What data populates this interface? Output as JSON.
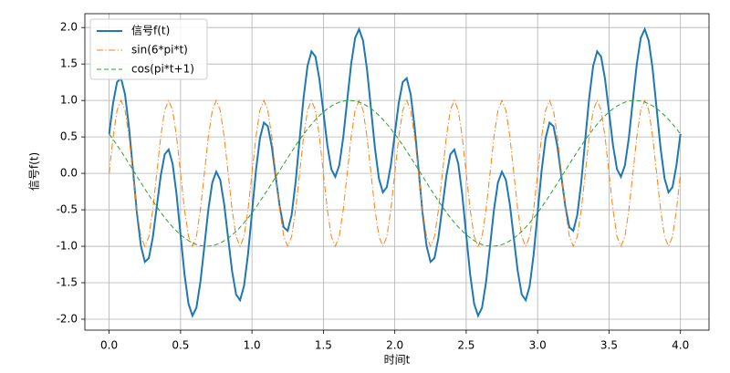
{
  "chart_data": {
    "type": "line",
    "xlabel": "时间t",
    "ylabel": "信号f(t)",
    "xlim": [
      -0.17,
      4.2
    ],
    "ylim": [
      -2.15,
      2.19
    ],
    "xticks": [
      {
        "value": 0,
        "label": "0.0"
      },
      {
        "value": 0.5,
        "label": "0.5"
      },
      {
        "value": 1,
        "label": "1.0"
      },
      {
        "value": 1.5,
        "label": "1.5"
      },
      {
        "value": 2,
        "label": "2.0"
      },
      {
        "value": 2.5,
        "label": "2.5"
      },
      {
        "value": 3,
        "label": "3.0"
      },
      {
        "value": 3.5,
        "label": "3.5"
      },
      {
        "value": 4,
        "label": "4.0"
      }
    ],
    "yticks": [
      {
        "value": -2,
        "label": "-2.0"
      },
      {
        "value": -1.5,
        "label": "-1.5"
      },
      {
        "value": -1,
        "label": "-1.0"
      },
      {
        "value": -0.5,
        "label": "-0.5"
      },
      {
        "value": 0,
        "label": "0.0"
      },
      {
        "value": 0.5,
        "label": "0.5"
      },
      {
        "value": 1,
        "label": "1.0"
      },
      {
        "value": 1.5,
        "label": "1.5"
      },
      {
        "value": 2,
        "label": "2.0"
      }
    ],
    "grid": true,
    "legend": "upper-left",
    "x": [
      0,
      0.0278,
      0.0556,
      0.0833,
      0.1111,
      0.1389,
      0.1667,
      0.1944,
      0.2222,
      0.25,
      0.2778,
      0.3056,
      0.3333,
      0.3611,
      0.3889,
      0.4167,
      0.4444,
      0.4722,
      0.5,
      0.5278,
      0.5556,
      0.5833,
      0.6111,
      0.6389,
      0.6667,
      0.6944,
      0.7222,
      0.75,
      0.7778,
      0.8056,
      0.8333,
      0.8611,
      0.8889,
      0.9167,
      0.9444,
      0.9722,
      1,
      1.0278,
      1.0556,
      1.0833,
      1.1111,
      1.1389,
      1.1667,
      1.1944,
      1.2222,
      1.25,
      1.2778,
      1.3056,
      1.3333,
      1.3611,
      1.3889,
      1.4167,
      1.4444,
      1.4722,
      1.5,
      1.5278,
      1.5556,
      1.5833,
      1.6111,
      1.6389,
      1.6667,
      1.6944,
      1.7222,
      1.75,
      1.7778,
      1.8056,
      1.8333,
      1.8611,
      1.8889,
      1.9167,
      1.9444,
      1.9722,
      2,
      2.0278,
      2.0556,
      2.0833,
      2.1111,
      2.1389,
      2.1667,
      2.1944,
      2.2222,
      2.25,
      2.2778,
      2.3056,
      2.3333,
      2.3611,
      2.3889,
      2.4167,
      2.4444,
      2.4722,
      2.5,
      2.5278,
      2.5556,
      2.5833,
      2.6111,
      2.6389,
      2.6667,
      2.6944,
      2.7222,
      2.75,
      2.7778,
      2.8056,
      2.8333,
      2.8611,
      2.8889,
      2.9167,
      2.9444,
      2.9722,
      3,
      3.0278,
      3.0556,
      3.0833,
      3.1111,
      3.1389,
      3.1667,
      3.1944,
      3.2222,
      3.25,
      3.2778,
      3.3056,
      3.3333,
      3.3611,
      3.3889,
      3.4167,
      3.4444,
      3.4722,
      3.5,
      3.5278,
      3.5556,
      3.5833,
      3.6111,
      3.6389,
      3.6667,
      3.6944,
      3.7222,
      3.75,
      3.7778,
      3.8056,
      3.8333,
      3.8611,
      3.8889,
      3.9167,
      3.9444,
      3.9722,
      4
    ],
    "series": [
      {
        "name": "信号f(t)",
        "color": "#1f77b4",
        "dash": "solid",
        "width": 2,
        "values": [
          0.5403,
          0.9649,
          1.252,
          1.3041,
          1.0859,
          0.6341,
          0.0472,
          -0.54,
          -0.9929,
          -1.213,
          -1.1633,
          -0.8795,
          -0.4586,
          -0.0343,
          0.2602,
          0.3268,
          0.131,
          -0.2913,
          -0.8415,
          -1.3852,
          -1.7885,
          -1.9527,
          -1.8415,
          -1.491,
          -0.9989,
          -0.4992,
          -0.1259,
          0.023,
          -0.0888,
          -0.4252,
          -0.8886,
          -1.3453,
          -1.6611,
          -1.7392,
          -1.5439,
          -1.1117,
          -0.5403,
          0.0351,
          0.48,
          0.6959,
          0.6461,
          0.3659,
          -0.0472,
          -0.46,
          -0.7391,
          -0.787,
          -0.5687,
          -0.1205,
          0.4586,
          1.0343,
          1.4718,
          1.6732,
          1.601,
          1.2913,
          0.8415,
          0.3852,
          0.0565,
          -0.0473,
          0.1095,
          0.491,
          0.9989,
          1.4992,
          1.8579,
          1.977,
          1.8208,
          1.4252,
          0.8886,
          0.3453,
          -0.0709,
          -0.2608,
          -0.1881,
          0.1117,
          0.5403,
          0.9649,
          1.252,
          1.3041,
          1.0859,
          0.6341,
          0.0472,
          -0.54,
          -0.9929,
          -1.213,
          -1.1633,
          -0.8795,
          -0.4586,
          -0.0343,
          0.2602,
          0.3268,
          0.131,
          -0.2913,
          -0.8415,
          -1.3852,
          -1.7885,
          -1.9527,
          -1.8415,
          -1.491,
          -0.9989,
          -0.4992,
          -0.1259,
          0.023,
          -0.0888,
          -0.4252,
          -0.8886,
          -1.3453,
          -1.6611,
          -1.7392,
          -1.5439,
          -1.1117,
          -0.5403,
          0.0351,
          0.48,
          0.6959,
          0.6461,
          0.3659,
          -0.0472,
          -0.46,
          -0.7391,
          -0.787,
          -0.5687,
          -0.1205,
          0.4586,
          1.0343,
          1.4718,
          1.6732,
          1.601,
          1.2913,
          0.8415,
          0.3852,
          0.0565,
          -0.0473,
          0.1095,
          0.491,
          0.9989,
          1.4992,
          1.8579,
          1.977,
          1.8208,
          1.4252,
          0.8886,
          0.3453,
          -0.0709,
          -0.2608,
          -0.1881,
          0.1117,
          0.5403
        ]
      },
      {
        "name": "sin(6*pi*t)",
        "color": "#ff7f0e",
        "dash": "dashdot",
        "width": 1,
        "values": [
          0,
          0.5,
          0.866,
          1,
          0.866,
          0.5,
          0,
          -0.5,
          -0.866,
          -1,
          -0.866,
          -0.5,
          0,
          0.5,
          0.866,
          1,
          0.866,
          0.5,
          0,
          -0.5,
          -0.866,
          -1,
          -0.866,
          -0.5,
          0,
          0.5,
          0.866,
          1,
          0.866,
          0.5,
          0,
          -0.5,
          -0.866,
          -1,
          -0.866,
          -0.5,
          0,
          0.5,
          0.866,
          1,
          0.866,
          0.5,
          0,
          -0.5,
          -0.866,
          -1,
          -0.866,
          -0.5,
          0,
          0.5,
          0.866,
          1,
          0.866,
          0.5,
          0,
          -0.5,
          -0.866,
          -1,
          -0.866,
          -0.5,
          0,
          0.5,
          0.866,
          1,
          0.866,
          0.5,
          0,
          -0.5,
          -0.866,
          -1,
          -0.866,
          -0.5,
          0,
          0.5,
          0.866,
          1,
          0.866,
          0.5,
          0,
          -0.5,
          -0.866,
          -1,
          -0.866,
          -0.5,
          0,
          0.5,
          0.866,
          1,
          0.866,
          0.5,
          0,
          -0.5,
          -0.866,
          -1,
          -0.866,
          -0.5,
          0,
          0.5,
          0.866,
          1,
          0.866,
          0.5,
          0,
          -0.5,
          -0.866,
          -1,
          -0.866,
          -0.5,
          0,
          0.5,
          0.866,
          1,
          0.866,
          0.5,
          0,
          -0.5,
          -0.866,
          -1,
          -0.866,
          -0.5,
          0,
          0.5,
          0.866,
          1,
          0.866,
          0.5,
          0,
          -0.5,
          -0.866,
          -1,
          -0.866,
          -0.5,
          0,
          0.5,
          0.866,
          1,
          0.866,
          0.5,
          0,
          -0.5,
          -0.866,
          -1,
          -0.866,
          -0.5,
          0
        ]
      },
      {
        "name": "cos(pi*t+1)",
        "color": "#2ca02c",
        "dash": "dashed",
        "width": 1,
        "values": [
          0.5403,
          0.4649,
          0.386,
          0.3041,
          0.2199,
          0.1341,
          0.0472,
          -0.04,
          -0.1269,
          -0.213,
          -0.2973,
          -0.3795,
          -0.4586,
          -0.5343,
          -0.6058,
          -0.6732,
          -0.735,
          -0.7913,
          -0.8415,
          -0.8852,
          -0.9225,
          -0.9527,
          -0.9755,
          -0.991,
          -0.9989,
          -0.9992,
          -0.9919,
          -0.977,
          -0.9548,
          -0.9252,
          -0.8886,
          -0.8453,
          -0.7951,
          -0.7392,
          -0.6779,
          -0.6117,
          -0.5403,
          -0.4649,
          -0.386,
          -0.3041,
          -0.2199,
          -0.1341,
          -0.0472,
          0.04,
          0.1269,
          0.213,
          0.2973,
          0.3795,
          0.4586,
          0.5343,
          0.6058,
          0.6732,
          0.735,
          0.7913,
          0.8415,
          0.8852,
          0.9225,
          0.9527,
          0.9755,
          0.991,
          0.9989,
          0.9992,
          0.9919,
          0.977,
          0.9548,
          0.9252,
          0.8886,
          0.8453,
          0.7951,
          0.7392,
          0.6779,
          0.6117,
          0.5403,
          0.4649,
          0.386,
          0.3041,
          0.2199,
          0.1341,
          0.0472,
          -0.04,
          -0.1269,
          -0.213,
          -0.2973,
          -0.3795,
          -0.4586,
          -0.5343,
          -0.6058,
          -0.6732,
          -0.735,
          -0.7913,
          -0.8415,
          -0.8852,
          -0.9225,
          -0.9527,
          -0.9755,
          -0.991,
          -0.9989,
          -0.9992,
          -0.9919,
          -0.977,
          -0.9548,
          -0.9252,
          -0.8886,
          -0.8453,
          -0.7951,
          -0.7392,
          -0.6779,
          -0.6117,
          -0.5403,
          -0.4649,
          -0.386,
          -0.3041,
          -0.2199,
          -0.1341,
          -0.0472,
          0.04,
          0.1269,
          0.213,
          0.2973,
          0.3795,
          0.4586,
          0.5343,
          0.6058,
          0.6732,
          0.735,
          0.7913,
          0.8415,
          0.8852,
          0.9225,
          0.9527,
          0.9755,
          0.991,
          0.9989,
          0.9992,
          0.9919,
          0.977,
          0.9548,
          0.9252,
          0.8886,
          0.8453,
          0.7951,
          0.7392,
          0.6779,
          0.6117,
          0.5403
        ]
      }
    ]
  }
}
